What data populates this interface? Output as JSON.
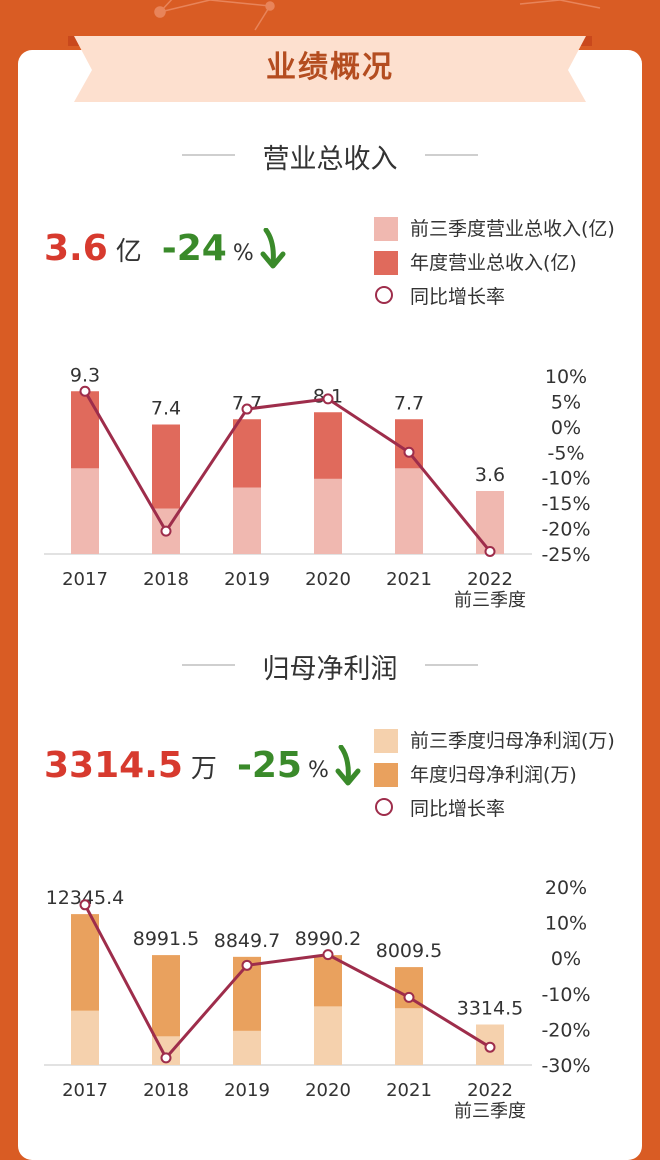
{
  "header": {
    "title": "业绩概况"
  },
  "colors": {
    "background": "#d95c24",
    "revenue_q3": "#f0b8b0",
    "revenue_annual": "#e06a5c",
    "profit_q3": "#f5d1ad",
    "profit_annual": "#e9a15e",
    "growth_line": "#9e2d4b",
    "kpi_red": "#d73a2e",
    "kpi_green": "#3a8a2a"
  },
  "revenue": {
    "section_title": "营业总收入",
    "kpi_value": "3.6",
    "kpi_unit": "亿",
    "kpi_change": "-24",
    "kpi_change_unit": "%",
    "kpi_arrow_icon": "arrow-down-icon",
    "legend": [
      "前三季度营业总收入(亿)",
      "年度营业总收入(亿)",
      "同比增长率"
    ]
  },
  "profit": {
    "section_title": "归母净利润",
    "kpi_value": "3314.5",
    "kpi_unit": "万",
    "kpi_change": "-25",
    "kpi_change_unit": "%",
    "kpi_arrow_icon": "arrow-down-icon",
    "legend": [
      "前三季度归母净利润(万)",
      "年度归母净利润(万)",
      "同比增长率"
    ]
  },
  "chart_data": [
    {
      "type": "bar",
      "title": "营业总收入",
      "categories": [
        "2017",
        "2018",
        "2019",
        "2020",
        "2021",
        "2022"
      ],
      "category_sublabels": [
        "",
        "",
        "",
        "",
        "",
        "前三季度"
      ],
      "series": [
        {
          "name": "前三季度营业总收入(亿)",
          "values": [
            4.9,
            2.6,
            3.8,
            4.3,
            4.9,
            3.6
          ]
        },
        {
          "name": "年度营业总收入(亿)",
          "values": [
            9.3,
            7.4,
            7.7,
            8.1,
            7.7,
            null
          ]
        },
        {
          "name": "同比增长率",
          "kind": "line",
          "axis": "right",
          "values": [
            7,
            -20.5,
            3.5,
            5.5,
            -5,
            -24.5
          ]
        }
      ],
      "bar_labels": [
        "9.3",
        "7.4",
        "7.7",
        "8.1",
        "7.7",
        "3.6"
      ],
      "ylim": [
        0,
        10
      ],
      "y2lim": [
        -25,
        10
      ],
      "y2ticks": [
        10,
        5,
        0,
        -5,
        -10,
        -15,
        -20,
        -25
      ],
      "y2ticklabels": [
        "10%",
        "5%",
        "0%",
        "-5%",
        "-10%",
        "-15%",
        "-20%",
        "-25%"
      ]
    },
    {
      "type": "bar",
      "title": "归母净利润",
      "categories": [
        "2017",
        "2018",
        "2019",
        "2020",
        "2021",
        "2022"
      ],
      "category_sublabels": [
        "",
        "",
        "",
        "",
        "",
        "前三季度"
      ],
      "series": [
        {
          "name": "前三季度归母净利润(万)",
          "values": [
            4450,
            2350,
            2800,
            4800,
            4650,
            3314.5
          ]
        },
        {
          "name": "年度归母净利润(万)",
          "values": [
            12345.4,
            8991.5,
            8849.7,
            8990.2,
            8009.5,
            null
          ]
        },
        {
          "name": "同比增长率",
          "kind": "line",
          "axis": "right",
          "values": [
            15,
            -28,
            -2,
            1,
            -11,
            -25
          ]
        }
      ],
      "bar_labels": [
        "12345.4",
        "8991.5",
        "8849.7",
        "8990.2",
        "8009.5",
        "3314.5"
      ],
      "ylim": [
        0,
        13500
      ],
      "y2lim": [
        -30,
        20
      ],
      "y2ticks": [
        20,
        10,
        0,
        -10,
        -20,
        -30
      ],
      "y2ticklabels": [
        "20%",
        "10%",
        "0%",
        "-10%",
        "-20%",
        "-30%"
      ]
    }
  ]
}
